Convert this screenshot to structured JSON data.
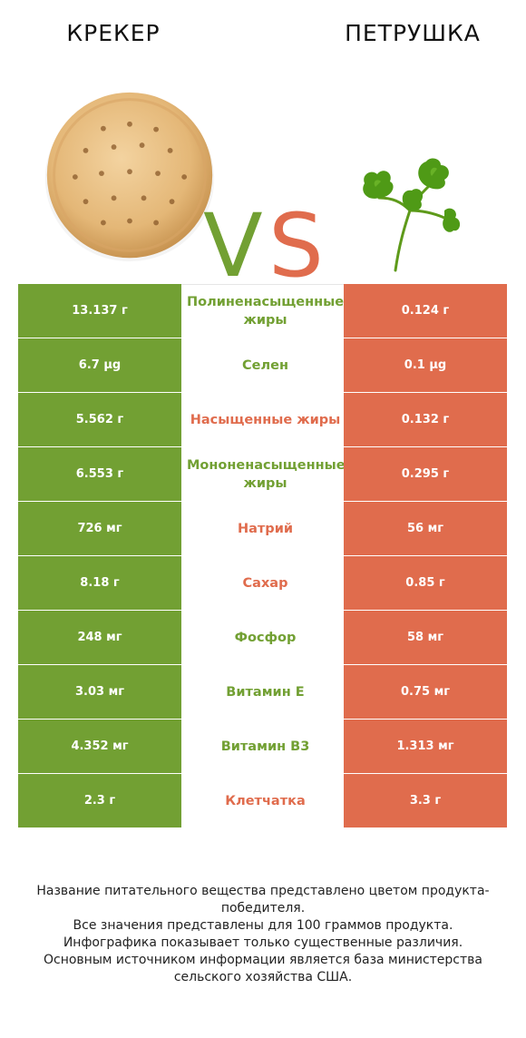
{
  "header": {
    "left_title": "КРЕКЕР",
    "right_title": "ПЕТРУШКА",
    "vs_v": "V",
    "vs_s": "S"
  },
  "colors": {
    "winner_left": "#72a033",
    "winner_right": "#e06c4d"
  },
  "rows": [
    {
      "left": "13.137 г",
      "name": "Полиненасыщенные жиры",
      "right": "0.124 г",
      "winner": "left"
    },
    {
      "left": "6.7 µg",
      "name": "Селен",
      "right": "0.1 µg",
      "winner": "left"
    },
    {
      "left": "5.562 г",
      "name": "Насыщенные жиры",
      "right": "0.132 г",
      "winner": "right"
    },
    {
      "left": "6.553 г",
      "name": "Мононенасыщенные жиры",
      "right": "0.295 г",
      "winner": "left"
    },
    {
      "left": "726 мг",
      "name": "Натрий",
      "right": "56 мг",
      "winner": "right"
    },
    {
      "left": "8.18 г",
      "name": "Сахар",
      "right": "0.85 г",
      "winner": "right"
    },
    {
      "left": "248 мг",
      "name": "Фосфор",
      "right": "58 мг",
      "winner": "left"
    },
    {
      "left": "3.03 мг",
      "name": "Витамин E",
      "right": "0.75 мг",
      "winner": "left"
    },
    {
      "left": "4.352 мг",
      "name": "Витамин B3",
      "right": "1.313 мг",
      "winner": "left"
    },
    {
      "left": "2.3 г",
      "name": "Клетчатка",
      "right": "3.3 г",
      "winner": "right"
    }
  ],
  "footer": {
    "line1": "Название питательного вещества представлено цветом продукта-победителя.",
    "line2": "Все значения представлены для 100 граммов продукта.",
    "line3": "Инфографика показывает только существенные различия.",
    "line4": "Основным источником информации является база министерства сельского хозяйства США."
  }
}
